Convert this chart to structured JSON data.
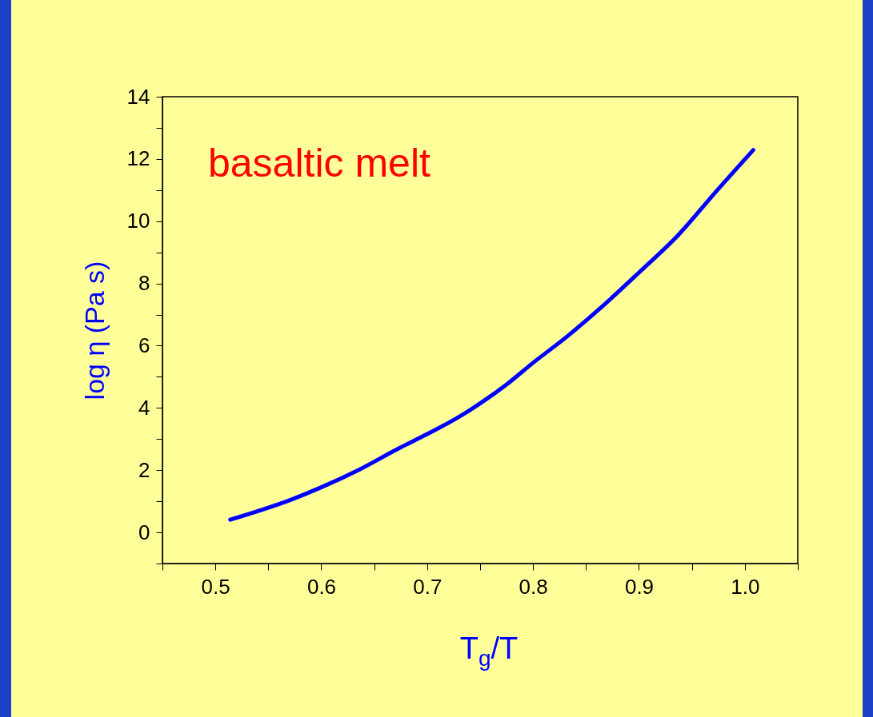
{
  "chart_data": {
    "type": "line",
    "xlabel": "T$_{g}$/T",
    "ylabel": "log η (Pa s)",
    "annotations": [
      "basaltic melt"
    ],
    "x": [
      0.514,
      0.572,
      0.6,
      0.636,
      0.672,
      0.7,
      0.728,
      0.752,
      0.776,
      0.8,
      0.832,
      0.864,
      0.9,
      0.937,
      0.973,
      1.008
    ],
    "series": [
      {
        "color": "#0000ff",
        "values": [
          0.41,
          1.06,
          1.45,
          2.02,
          2.68,
          3.16,
          3.67,
          4.19,
          4.78,
          5.45,
          6.29,
          7.22,
          8.35,
          9.55,
          10.96,
          12.29
        ]
      }
    ],
    "xlim": [
      0.45,
      1.05
    ],
    "ylim": [
      -1,
      14
    ],
    "xticks": [
      {
        "value": 0.45,
        "label": null
      },
      0.5,
      {
        "value": 0.55,
        "label": null
      },
      0.6,
      {
        "value": 0.65,
        "label": null
      },
      0.7,
      {
        "value": 0.75,
        "label": null
      },
      0.8,
      {
        "value": 0.85,
        "label": null
      },
      0.9,
      {
        "value": 0.95,
        "label": null
      },
      {
        "value": 1.0,
        "label": "1.0"
      },
      {
        "value": 1.05,
        "label": null
      }
    ],
    "yticks": [
      {
        "value": -1,
        "label": null
      },
      0,
      {
        "value": 1,
        "label": null
      },
      2,
      {
        "value": 3,
        "label": null
      },
      4,
      {
        "value": 5,
        "label": null
      },
      6,
      {
        "value": 7,
        "label": null
      },
      8,
      {
        "value": 9,
        "label": null
      },
      10,
      {
        "value": 11,
        "label": null
      },
      12,
      {
        "value": 13,
        "label": null
      },
      14
    ],
    "grid": false,
    "marker": "none",
    "line_style": "solid"
  }
}
